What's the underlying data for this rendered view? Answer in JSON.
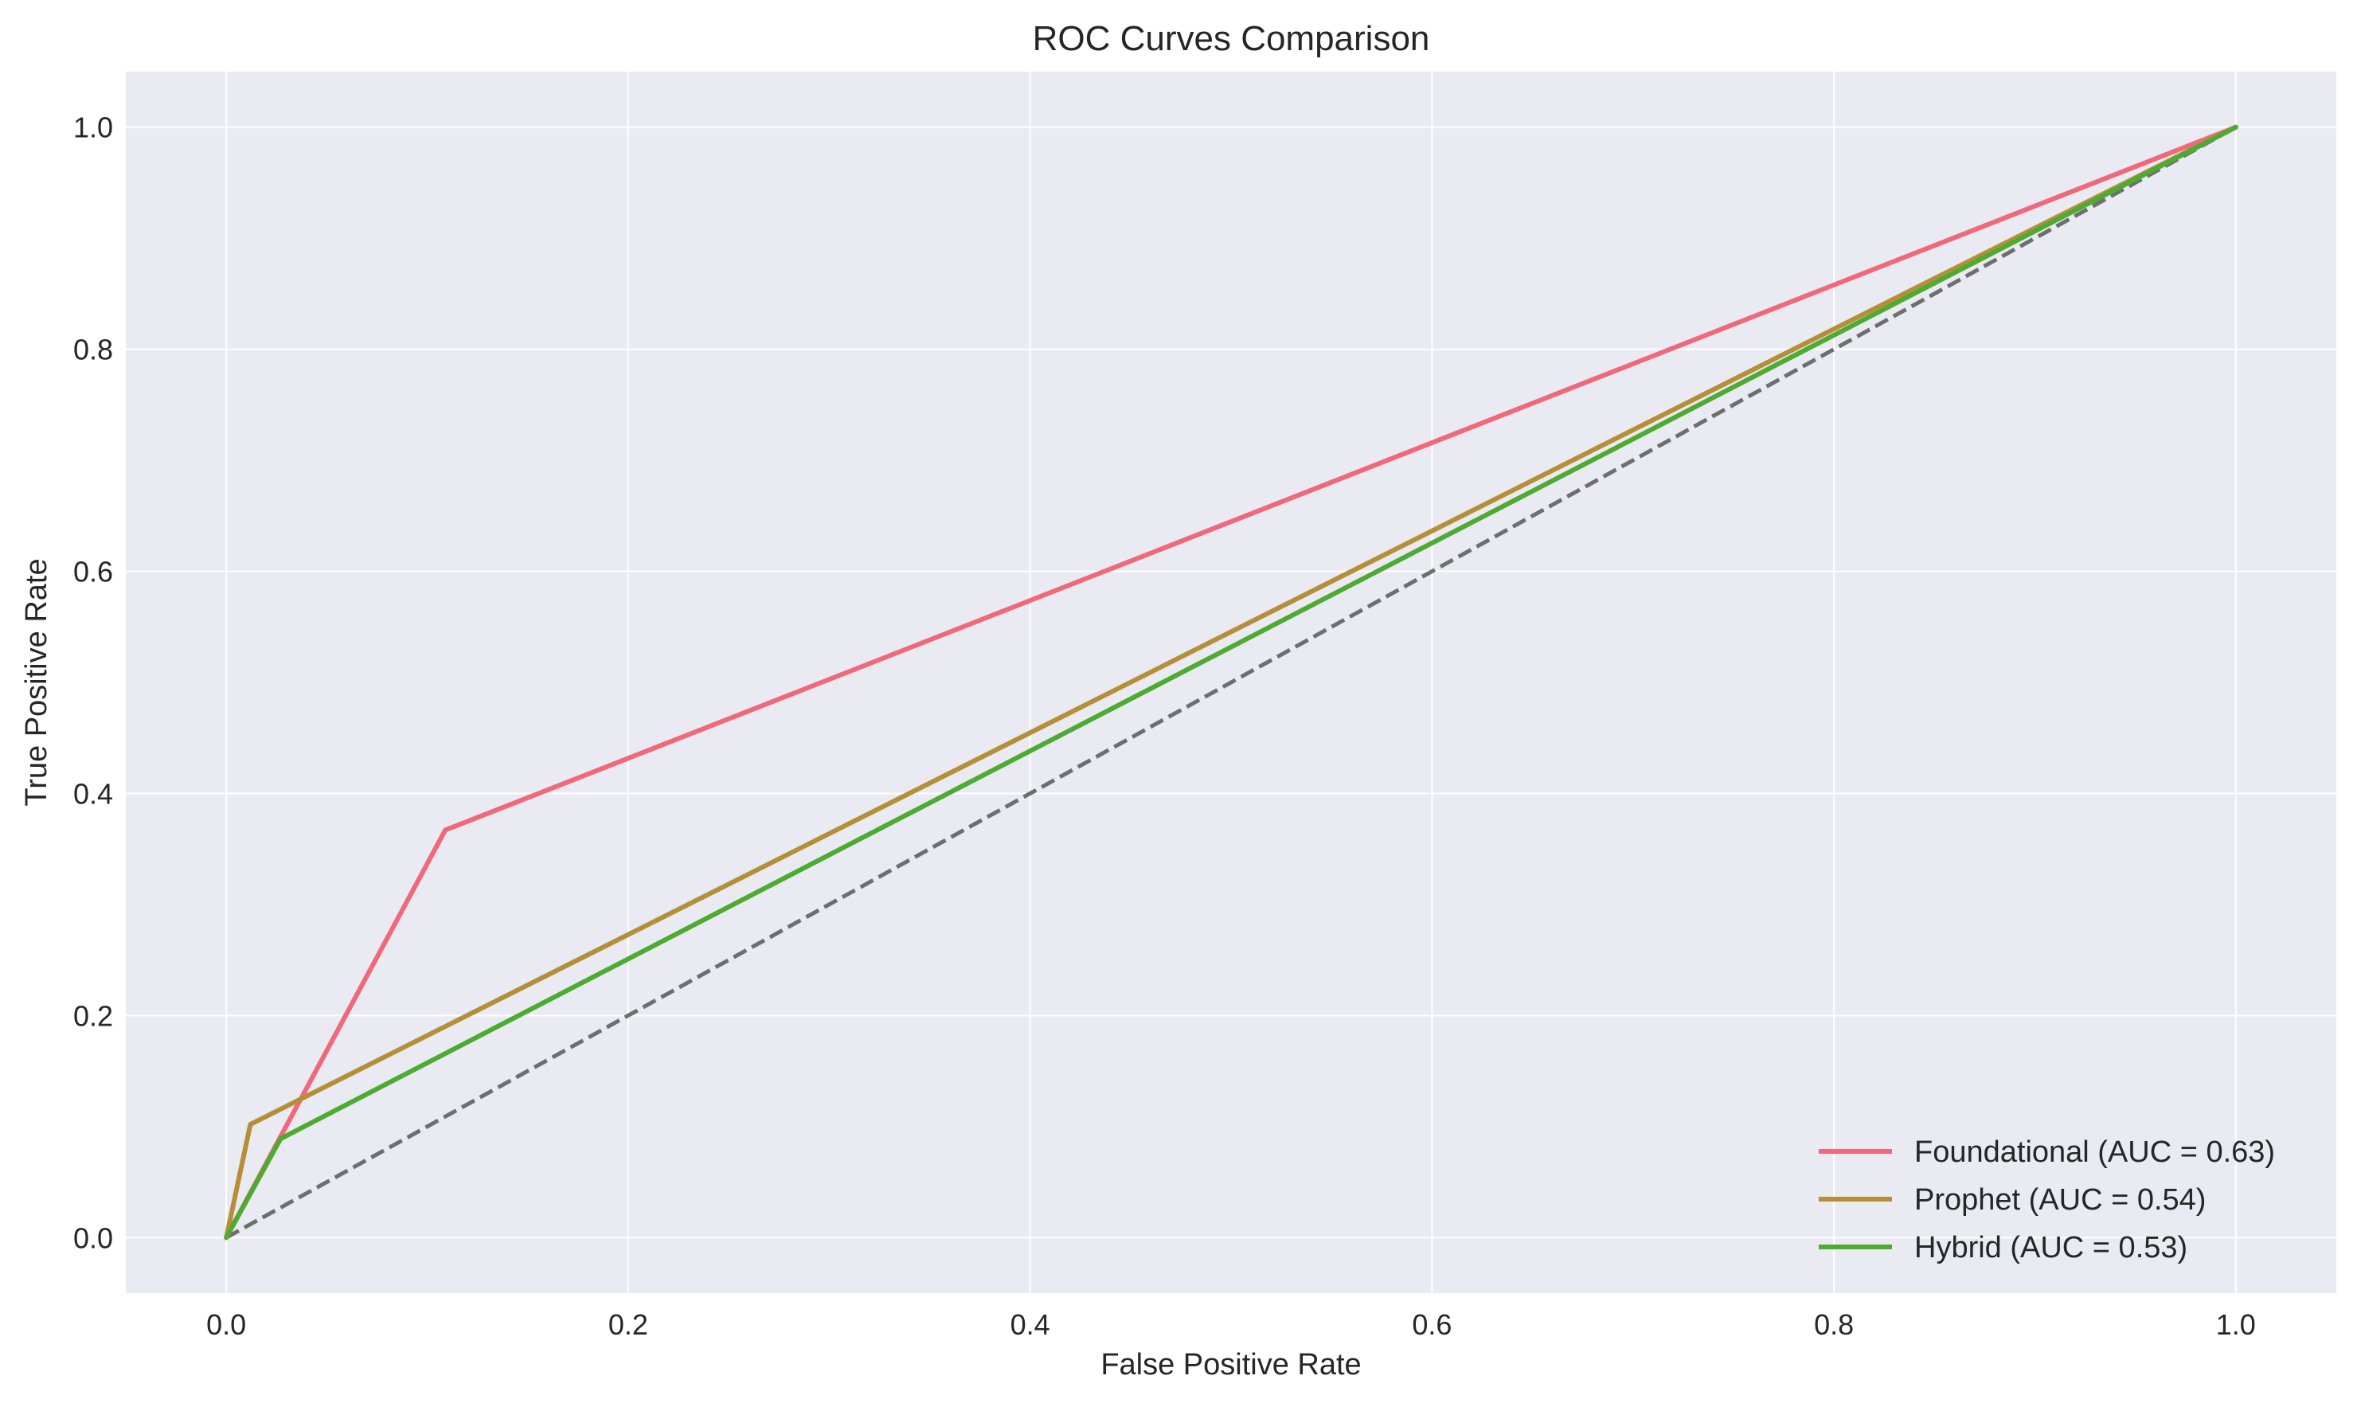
{
  "chart_data": {
    "type": "line",
    "title": "ROC Curves Comparison",
    "xlabel": "False Positive Rate",
    "ylabel": "True Positive Rate",
    "xlim": [
      -0.05,
      1.05
    ],
    "ylim": [
      -0.05,
      1.05
    ],
    "xticks": [
      0.0,
      0.2,
      0.4,
      0.6,
      0.8,
      1.0
    ],
    "yticks": [
      0.0,
      0.2,
      0.4,
      0.6,
      0.8,
      1.0
    ],
    "xtick_labels": [
      "0.0",
      "0.2",
      "0.4",
      "0.6",
      "0.8",
      "1.0"
    ],
    "ytick_labels": [
      "0.0",
      "0.2",
      "0.4",
      "0.6",
      "0.8",
      "1.0"
    ],
    "grid": true,
    "background": "#eaeaf2",
    "legend_position": "lower-right",
    "series": [
      {
        "name": "Foundational (AUC = 0.63)",
        "color": "#f0697a",
        "x": [
          0.0,
          0.109,
          1.0
        ],
        "y": [
          0.0,
          0.367,
          1.0
        ]
      },
      {
        "name": "Prophet (AUC = 0.54)",
        "color": "#b58f38",
        "x": [
          0.0,
          0.012,
          1.0
        ],
        "y": [
          0.0,
          0.102,
          1.0
        ]
      },
      {
        "name": "Hybrid (AUC = 0.53)",
        "color": "#4dab32",
        "x": [
          0.0,
          0.027,
          1.0
        ],
        "y": [
          0.0,
          0.089,
          1.0
        ]
      }
    ],
    "reference_line": {
      "x": [
        0.0,
        1.0
      ],
      "y": [
        0.0,
        1.0
      ],
      "color": "#6e6e6e",
      "style": "dashed"
    }
  }
}
